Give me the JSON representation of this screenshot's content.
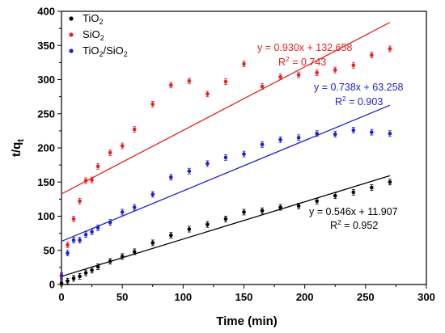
{
  "chart_data": {
    "type": "scatter",
    "xlabel": "Time (min)",
    "ylabel": {
      "main": "t/q",
      "sub": "t"
    },
    "xlim": [
      0,
      300
    ],
    "ylim": [
      0,
      400
    ],
    "xticks": [
      0,
      50,
      100,
      150,
      200,
      250,
      300
    ],
    "yticks": [
      0,
      50,
      100,
      150,
      200,
      250,
      300,
      350,
      400
    ],
    "grid": false,
    "legend_position": "top-left",
    "series": [
      {
        "legend": {
          "base": "TiO",
          "sub": "2",
          "rest": ""
        },
        "color": "#000000",
        "x": [
          0,
          5,
          10,
          15,
          20,
          25,
          30,
          40,
          50,
          60,
          75,
          90,
          105,
          120,
          135,
          150,
          165,
          180,
          195,
          210,
          225,
          240,
          255,
          270
        ],
        "y": [
          2,
          5,
          9,
          12,
          17,
          21,
          26,
          34,
          41,
          48,
          61,
          72,
          81,
          88,
          96,
          106,
          108,
          113,
          115,
          122,
          130,
          135,
          142,
          150
        ],
        "fit": {
          "slope": 0.546,
          "intercept": 11.907,
          "x_range": [
            0,
            270
          ]
        },
        "equation": "y = 0.546x + 11.907",
        "r2": {
          "prefix": "R",
          "sup": "2",
          "value": " = 0.952"
        }
      },
      {
        "legend": {
          "base": "SiO",
          "sub": "2",
          "rest": ""
        },
        "color": "#e32322",
        "x": [
          0,
          5,
          10,
          15,
          20,
          25,
          30,
          40,
          50,
          60,
          75,
          90,
          105,
          120,
          135,
          150,
          165,
          180,
          195,
          210,
          225,
          240,
          255,
          270
        ],
        "y": [
          12,
          58,
          96,
          122,
          152,
          153,
          173,
          193,
          203,
          227,
          264,
          292,
          298,
          279,
          297,
          323,
          290,
          304,
          307,
          310,
          314,
          321,
          336,
          345
        ],
        "fit": {
          "slope": 0.93,
          "intercept": 132.658,
          "x_range": [
            0,
            270
          ]
        },
        "equation": "y = 0.930x + 132.658",
        "r2": {
          "prefix": "R",
          "sup": "2",
          "value": " = 0.743"
        }
      },
      {
        "legend": {
          "base": "TiO",
          "sub": "2",
          "rest": "/SiO",
          "sub2": "2"
        },
        "color": "#1f1fd2",
        "x": [
          0,
          5,
          10,
          15,
          20,
          25,
          30,
          40,
          50,
          60,
          75,
          90,
          105,
          120,
          135,
          150,
          165,
          180,
          195,
          210,
          225,
          240,
          255,
          270
        ],
        "y": [
          13,
          46,
          65,
          65,
          73,
          77,
          83,
          91,
          106,
          113,
          132,
          157,
          166,
          177,
          186,
          191,
          205,
          212,
          215,
          221,
          220,
          226,
          223,
          221
        ],
        "fit": {
          "slope": 0.738,
          "intercept": 63.258,
          "x_range": [
            0,
            270
          ]
        },
        "equation": "y = 0.738x + 63.258",
        "r2": {
          "prefix": "R",
          "sup": "2",
          "value": " = 0.903"
        }
      }
    ]
  }
}
